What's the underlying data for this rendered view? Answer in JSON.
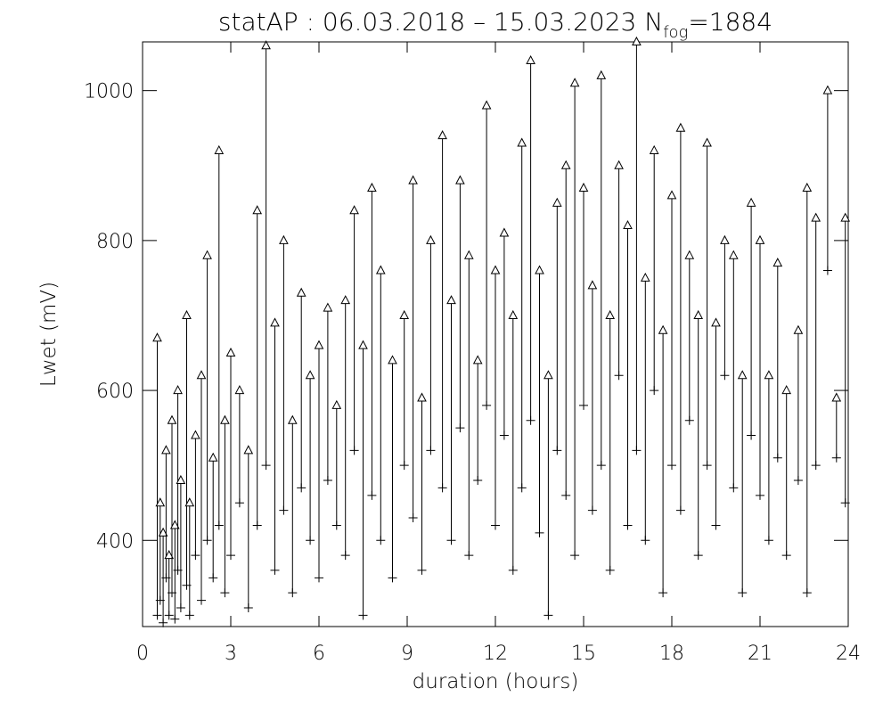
{
  "chart_data": {
    "type": "range-scatter",
    "title": "statAP : 06.03.2018 – 15.03.2023 N",
    "title_subscript": "fog",
    "title_suffix": "=1884",
    "xlabel": "duration (hours)",
    "ylabel": "Lwet (mV)",
    "xlim": [
      0,
      24
    ],
    "xticks": [
      0,
      3,
      6,
      9,
      12,
      15,
      18,
      21,
      24
    ],
    "ylim": [
      285,
      1065
    ],
    "yticks": [
      400,
      600,
      800,
      1000
    ],
    "color": "#000000",
    "x": [
      0.5,
      0.6,
      0.7,
      0.8,
      0.9,
      1.0,
      1.1,
      1.2,
      1.3,
      1.5,
      1.6,
      1.8,
      2.0,
      2.2,
      2.4,
      2.6,
      2.8,
      3.0,
      3.3,
      3.6,
      3.9,
      4.2,
      4.5,
      4.8,
      5.1,
      5.4,
      5.7,
      6.0,
      6.3,
      6.6,
      6.9,
      7.2,
      7.5,
      7.8,
      8.1,
      8.5,
      8.9,
      9.2,
      9.5,
      9.8,
      10.2,
      10.5,
      10.8,
      11.1,
      11.4,
      11.7,
      12.0,
      12.3,
      12.6,
      12.9,
      13.2,
      13.5,
      13.8,
      14.1,
      14.4,
      14.7,
      15.0,
      15.3,
      15.6,
      15.9,
      16.2,
      16.5,
      16.8,
      17.1,
      17.4,
      17.7,
      18.0,
      18.3,
      18.6,
      18.9,
      19.2,
      19.5,
      19.8,
      20.1,
      20.4,
      20.7,
      21.0,
      21.3,
      21.6,
      21.9,
      22.3,
      22.6,
      22.9,
      23.3,
      23.6,
      23.9
    ],
    "low": [
      300,
      320,
      290,
      350,
      300,
      330,
      295,
      360,
      310,
      340,
      300,
      380,
      320,
      400,
      350,
      420,
      330,
      380,
      450,
      310,
      420,
      500,
      360,
      440,
      330,
      470,
      400,
      350,
      480,
      420,
      380,
      520,
      300,
      460,
      400,
      350,
      500,
      430,
      360,
      520,
      470,
      400,
      550,
      380,
      480,
      580,
      420,
      540,
      360,
      470,
      560,
      410,
      300,
      520,
      460,
      380,
      580,
      440,
      500,
      360,
      620,
      420,
      520,
      400,
      600,
      330,
      500,
      440,
      560,
      380,
      500,
      420,
      620,
      470,
      330,
      540,
      460,
      400,
      510,
      380,
      480,
      330,
      500,
      760,
      510,
      450
    ],
    "high": [
      670,
      450,
      410,
      520,
      380,
      560,
      420,
      600,
      480,
      700,
      450,
      540,
      620,
      780,
      510,
      920,
      560,
      650,
      600,
      520,
      840,
      1060,
      690,
      800,
      560,
      730,
      620,
      660,
      710,
      580,
      720,
      840,
      660,
      870,
      760,
      640,
      700,
      880,
      590,
      800,
      940,
      720,
      880,
      780,
      640,
      980,
      760,
      810,
      700,
      930,
      1040,
      760,
      620,
      850,
      900,
      1010,
      870,
      740,
      1020,
      700,
      900,
      820,
      1065,
      750,
      920,
      680,
      860,
      950,
      780,
      700,
      930,
      690,
      800,
      780,
      620,
      850,
      800,
      620,
      770,
      600,
      680,
      870,
      830,
      1000,
      590,
      830
    ]
  }
}
